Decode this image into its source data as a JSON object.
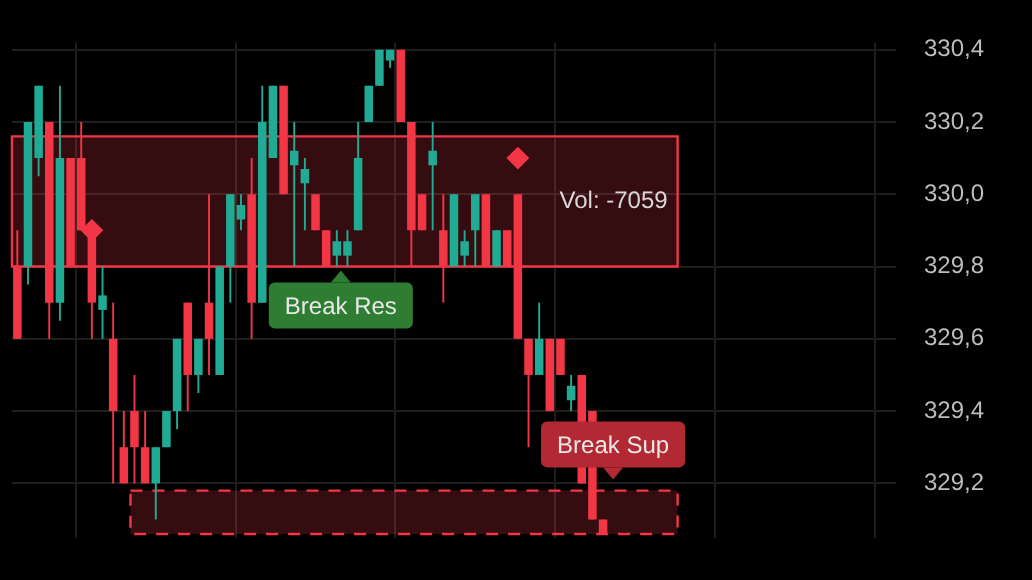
{
  "chart_data": {
    "type": "candlestick",
    "categories": [
      null,
      null,
      null,
      null,
      null,
      null,
      null,
      null,
      null,
      null,
      null,
      null,
      null,
      null,
      null,
      null,
      null,
      null,
      null,
      null,
      null,
      null,
      null,
      null,
      null,
      null,
      null,
      null,
      null,
      null,
      null,
      null,
      null,
      null,
      null,
      null,
      null,
      null,
      null,
      null,
      null,
      null,
      null,
      null,
      null,
      null,
      null,
      null,
      null,
      null,
      null,
      null,
      null,
      null,
      null,
      null,
      null,
      null,
      null,
      null,
      null,
      null,
      null,
      null,
      null,
      null,
      null,
      null,
      null,
      null,
      null,
      null,
      null,
      null,
      null,
      null,
      null,
      null,
      null,
      null,
      null,
      null,
      null
    ],
    "series": [
      {
        "type": "candlestick",
        "ohlc": [
          [
            329.8,
            329.9,
            329.6,
            329.6
          ],
          [
            329.8,
            330.2,
            329.75,
            330.2
          ],
          [
            330.1,
            330.3,
            330.05,
            330.3
          ],
          [
            330.2,
            330.2,
            329.6,
            329.7
          ],
          [
            329.7,
            330.3,
            329.65,
            330.1
          ],
          [
            330.1,
            330.1,
            329.8,
            329.8
          ],
          [
            330.1,
            330.2,
            329.9,
            329.9
          ],
          [
            329.9,
            329.9,
            329.6,
            329.7
          ],
          [
            329.68,
            329.8,
            329.6,
            329.72
          ],
          [
            329.6,
            329.7,
            329.2,
            329.4
          ],
          [
            329.3,
            329.4,
            329.2,
            329.2
          ],
          [
            329.4,
            329.5,
            329.2,
            329.3
          ],
          [
            329.3,
            329.4,
            329.2,
            329.2
          ],
          [
            329.2,
            329.3,
            329.1,
            329.3
          ],
          [
            329.3,
            329.4,
            329.3,
            329.4
          ],
          [
            329.4,
            329.6,
            329.35,
            329.6
          ],
          [
            329.7,
            329.7,
            329.4,
            329.5
          ],
          [
            329.5,
            329.6,
            329.45,
            329.6
          ],
          [
            329.7,
            330.0,
            329.5,
            329.6
          ],
          [
            329.5,
            329.8,
            329.5,
            329.8
          ],
          [
            329.8,
            330.0,
            329.7,
            330.0
          ],
          [
            329.93,
            330.0,
            329.9,
            329.97
          ],
          [
            330.0,
            330.1,
            329.6,
            329.7
          ],
          [
            329.7,
            330.3,
            329.7,
            330.2
          ],
          [
            330.1,
            330.3,
            330.1,
            330.3
          ],
          [
            330.3,
            330.3,
            330.0,
            330.0
          ],
          [
            330.08,
            330.2,
            329.8,
            330.12
          ],
          [
            330.03,
            330.1,
            329.9,
            330.07
          ],
          [
            330.0,
            330.0,
            329.9,
            329.9
          ],
          [
            329.9,
            329.9,
            329.8,
            329.8
          ],
          [
            329.83,
            329.9,
            329.8,
            329.87
          ],
          [
            329.83,
            329.9,
            329.8,
            329.87
          ],
          [
            329.9,
            330.2,
            329.9,
            330.1
          ],
          [
            330.2,
            330.3,
            330.2,
            330.3
          ],
          [
            330.3,
            330.4,
            330.3,
            330.4
          ],
          [
            330.37,
            330.4,
            330.35,
            330.4
          ],
          [
            330.4,
            330.4,
            330.2,
            330.2
          ],
          [
            330.2,
            330.2,
            329.8,
            329.9
          ],
          [
            330.0,
            330.0,
            329.9,
            329.9
          ],
          [
            330.08,
            330.2,
            329.9,
            330.12
          ],
          [
            329.9,
            330.0,
            329.7,
            329.8
          ],
          [
            329.8,
            330.0,
            329.8,
            330.0
          ],
          [
            329.83,
            329.9,
            329.8,
            329.87
          ],
          [
            329.9,
            330.0,
            329.8,
            330.0
          ],
          [
            330.0,
            330.0,
            329.8,
            329.8
          ],
          [
            329.8,
            329.9,
            329.8,
            329.9
          ],
          [
            329.9,
            329.9,
            329.8,
            329.8
          ],
          [
            330.0,
            330.0,
            329.6,
            329.6
          ],
          [
            329.6,
            329.6,
            329.3,
            329.5
          ],
          [
            329.5,
            329.7,
            329.5,
            329.6
          ],
          [
            329.6,
            329.6,
            329.4,
            329.4
          ],
          [
            329.6,
            329.6,
            329.5,
            329.5
          ],
          [
            329.43,
            329.5,
            329.4,
            329.47
          ],
          [
            329.5,
            329.5,
            329.2,
            329.2
          ],
          [
            329.4,
            329.4,
            329.1,
            329.1
          ],
          [
            329.1,
            329.1,
            329.06,
            329.06
          ],
          null,
          null,
          null,
          null,
          null,
          null,
          null,
          null,
          null,
          null,
          null,
          null,
          null,
          null,
          null,
          null,
          null,
          null,
          null,
          null,
          null,
          null,
          null,
          null,
          null,
          null,
          null
        ],
        "colors": [
          "#f23645",
          "#22ab94",
          "#22ab94",
          "#f23645",
          "#22ab94",
          "#f23645",
          "#f23645",
          "#f23645",
          "#22ab94",
          "#f23645",
          "#f23645",
          "#f23645",
          "#f23645",
          "#22ab94",
          "#22ab94",
          "#22ab94",
          "#f23645",
          "#22ab94",
          "#f23645",
          "#22ab94",
          "#22ab94",
          "#22ab94",
          "#f23645",
          "#22ab94",
          "#22ab94",
          "#f23645",
          "#22ab94",
          "#22ab94",
          "#f23645",
          "#f23645",
          "#22ab94",
          "#22ab94",
          "#22ab94",
          "#22ab94",
          "#22ab94",
          "#22ab94",
          "#f23645",
          "#f23645",
          "#f23645",
          "#22ab94",
          "#f23645",
          "#22ab94",
          "#22ab94",
          "#22ab94",
          "#f23645",
          "#22ab94",
          "#f23645",
          "#f23645",
          "#f23645",
          "#22ab94",
          "#f23645",
          "#f23645",
          "#22ab94",
          "#f23645",
          "#f23645",
          "#f23645",
          null,
          null,
          null,
          null,
          null,
          null,
          null,
          null,
          null,
          null,
          null,
          null,
          null,
          null,
          null,
          null,
          null,
          null,
          null,
          null,
          null,
          null,
          null,
          null,
          null,
          null,
          null
        ]
      },
      {
        "type": "scatter",
        "color": "#f23645",
        "marker": "diamond",
        "values": [
          null,
          null,
          null,
          null,
          null,
          null,
          null,
          329.9,
          null,
          null,
          null,
          null,
          null,
          null,
          null,
          null,
          null,
          null,
          null,
          null,
          null,
          null,
          null,
          null,
          null,
          null,
          null,
          null,
          null,
          null,
          null,
          null,
          null,
          null,
          null,
          null,
          null,
          null,
          null,
          null,
          null,
          null,
          null,
          null,
          null,
          null,
          null,
          330.1,
          null,
          null,
          null,
          null,
          null,
          null,
          null,
          null,
          null,
          null,
          null,
          null,
          null,
          null,
          null,
          null,
          null,
          null,
          null,
          null,
          null,
          null,
          null,
          null,
          null,
          null,
          null,
          null,
          null,
          null,
          null,
          null,
          null,
          null,
          null
        ]
      }
    ],
    "ylim": [
      329.05,
      330.42
    ],
    "yticks": [
      {
        "value": 329.2,
        "label": "329,2"
      },
      {
        "value": 329.4,
        "label": "329,4"
      },
      {
        "value": 329.6,
        "label": "329,6"
      },
      {
        "value": 329.8,
        "label": "329,8"
      },
      {
        "value": 330.0,
        "label": "330,0"
      },
      {
        "value": 330.2,
        "label": "330,2"
      },
      {
        "value": 330.4,
        "label": "330,4"
      }
    ],
    "grid": true,
    "bands": [
      {
        "axis": "y",
        "from": 329.8,
        "to": 330.16,
        "label": "Vol: -7059",
        "color": "#f23645"
      },
      {
        "axis": "y",
        "from": 329.06,
        "to": 329.18,
        "color": "#f23645"
      }
    ],
    "annotations": [
      {
        "text": "Break Res",
        "y": 329.8
      },
      {
        "text": "Break Sup",
        "y": 329.2
      }
    ]
  }
}
